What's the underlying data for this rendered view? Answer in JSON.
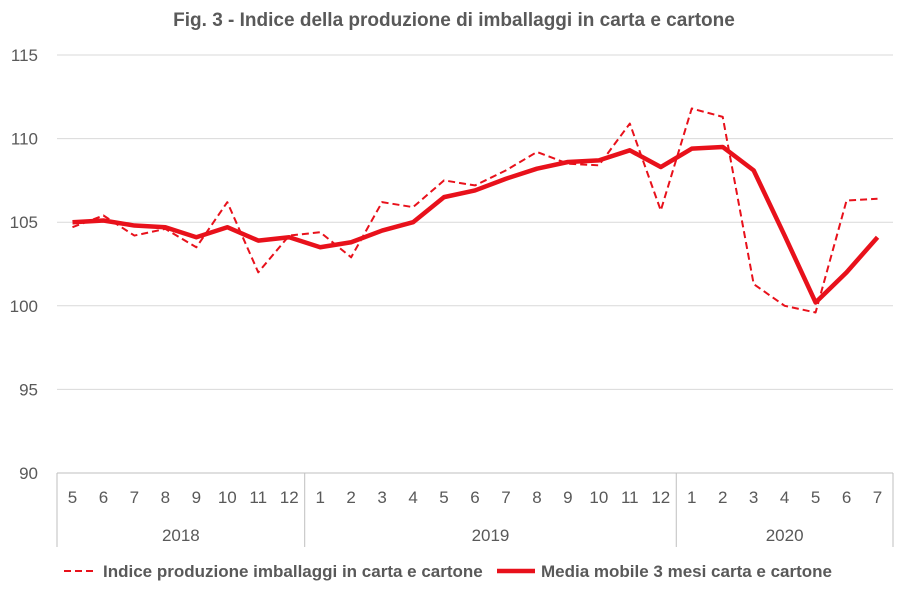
{
  "chart_data": {
    "type": "line",
    "title": "Fig. 3 - Indice della produzione di imballaggi in carta e cartone",
    "xlabel": "",
    "ylabel": "",
    "ylim": [
      90,
      115
    ],
    "yticks": [
      "90",
      "95",
      "100",
      "105",
      "110",
      "115"
    ],
    "grid": true,
    "legend_position": "bottom",
    "categories": [
      "5",
      "6",
      "7",
      "8",
      "9",
      "10",
      "11",
      "12",
      "1",
      "2",
      "3",
      "4",
      "5",
      "6",
      "7",
      "8",
      "9",
      "10",
      "11",
      "12",
      "1",
      "2",
      "3",
      "4",
      "5",
      "6",
      "7"
    ],
    "year_groups": [
      {
        "label": "2018",
        "count": 8
      },
      {
        "label": "2019",
        "count": 12
      },
      {
        "label": "2020",
        "count": 7
      }
    ],
    "series": [
      {
        "name": "Indice produzione imballaggi in carta e cartone",
        "style": "dashed",
        "color": "#e8111b",
        "values": [
          104.7,
          105.4,
          104.2,
          104.6,
          103.5,
          106.2,
          102.0,
          104.2,
          104.4,
          102.9,
          106.2,
          105.9,
          107.5,
          107.2,
          108.1,
          109.2,
          108.5,
          108.4,
          110.9,
          105.7,
          111.8,
          111.3,
          101.3,
          100.0,
          99.6,
          106.3,
          106.4
        ]
      },
      {
        "name": "Media mobile 3 mesi  carta e cartone",
        "style": "solid",
        "color": "#e8111b",
        "values": [
          105.0,
          105.1,
          104.8,
          104.7,
          104.1,
          104.7,
          103.9,
          104.1,
          103.5,
          103.8,
          104.5,
          105.0,
          106.5,
          106.9,
          107.6,
          108.2,
          108.6,
          108.7,
          109.3,
          108.3,
          109.4,
          109.5,
          108.1,
          104.2,
          100.2,
          102.0,
          104.1
        ]
      }
    ]
  }
}
